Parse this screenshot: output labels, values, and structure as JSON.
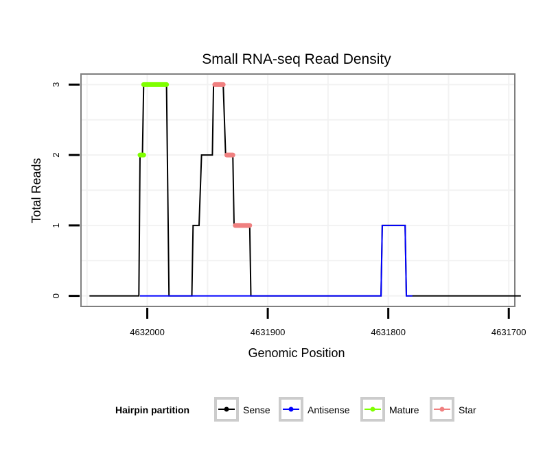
{
  "chart_data": {
    "type": "line",
    "title": "Small RNA-seq Read Density",
    "xlabel": "Genomic Position",
    "ylabel": "Total Reads",
    "xlim": [
      4632055,
      4631695
    ],
    "ylim": [
      -0.15,
      3.15
    ],
    "x_reversed": true,
    "x_ticks": [
      4632000,
      4631900,
      4631800,
      4631700
    ],
    "x_tick_labels": [
      "4632000",
      "4631900",
      "4631800",
      "4631700"
    ],
    "y_ticks": [
      0,
      1,
      2,
      3
    ],
    "y_tick_labels": [
      "0",
      "1",
      "2",
      "3"
    ],
    "grid": true,
    "colors": {
      "sense": "#000000",
      "antisense": "#0000ff",
      "mature": "#7fff00",
      "star": "#f08080",
      "panel_border": "#7f7f7f",
      "grid": "#f2f2f2"
    },
    "series": [
      {
        "name": "Sense",
        "color": "#000000",
        "points": [
          [
            4632048,
            0
          ],
          [
            4632007,
            0
          ],
          [
            4632006,
            2
          ],
          [
            4632004,
            2
          ],
          [
            4632003,
            3
          ],
          [
            4631984,
            3
          ],
          [
            4631982,
            0
          ],
          [
            4631963,
            0
          ],
          [
            4631962,
            1
          ],
          [
            4631957,
            1
          ],
          [
            4631955,
            2
          ],
          [
            4631946,
            2
          ],
          [
            4631945,
            3
          ],
          [
            4631937,
            3
          ],
          [
            4631935,
            2
          ],
          [
            4631929,
            2
          ],
          [
            4631928,
            1
          ],
          [
            4631915,
            1
          ],
          [
            4631914,
            0
          ],
          [
            4631806,
            0
          ],
          [
            4631805,
            1
          ],
          [
            4631786,
            1
          ],
          [
            4631785,
            0
          ],
          [
            4631690,
            0
          ]
        ]
      },
      {
        "name": "Antisense",
        "color": "#0000ff",
        "points": [
          [
            4632006,
            0
          ],
          [
            4631914,
            0
          ],
          [
            4631815,
            0
          ],
          [
            4631806,
            0
          ],
          [
            4631805,
            1
          ],
          [
            4631786,
            1
          ],
          [
            4631785,
            0
          ],
          [
            4631780,
            0
          ]
        ]
      },
      {
        "name": "Mature",
        "color": "#7fff00",
        "segments": [
          {
            "x": [
              4632006,
              4632003
            ],
            "y": 2
          },
          {
            "x": [
              4632003,
              4631984
            ],
            "y": 3
          }
        ]
      },
      {
        "name": "Star",
        "color": "#f08080",
        "segments": [
          {
            "x": [
              4631944,
              4631937
            ],
            "y": 3
          },
          {
            "x": [
              4631934,
              4631929
            ],
            "y": 2
          },
          {
            "x": [
              4631927,
              4631915
            ],
            "y": 1
          }
        ]
      }
    ],
    "legend": {
      "title": "Hairpin partition",
      "position": "bottom",
      "items": [
        {
          "label": "Sense",
          "color": "#000000"
        },
        {
          "label": "Antisense",
          "color": "#0000ff"
        },
        {
          "label": "Mature",
          "color": "#7fff00"
        },
        {
          "label": "Star",
          "color": "#f08080"
        }
      ]
    }
  }
}
